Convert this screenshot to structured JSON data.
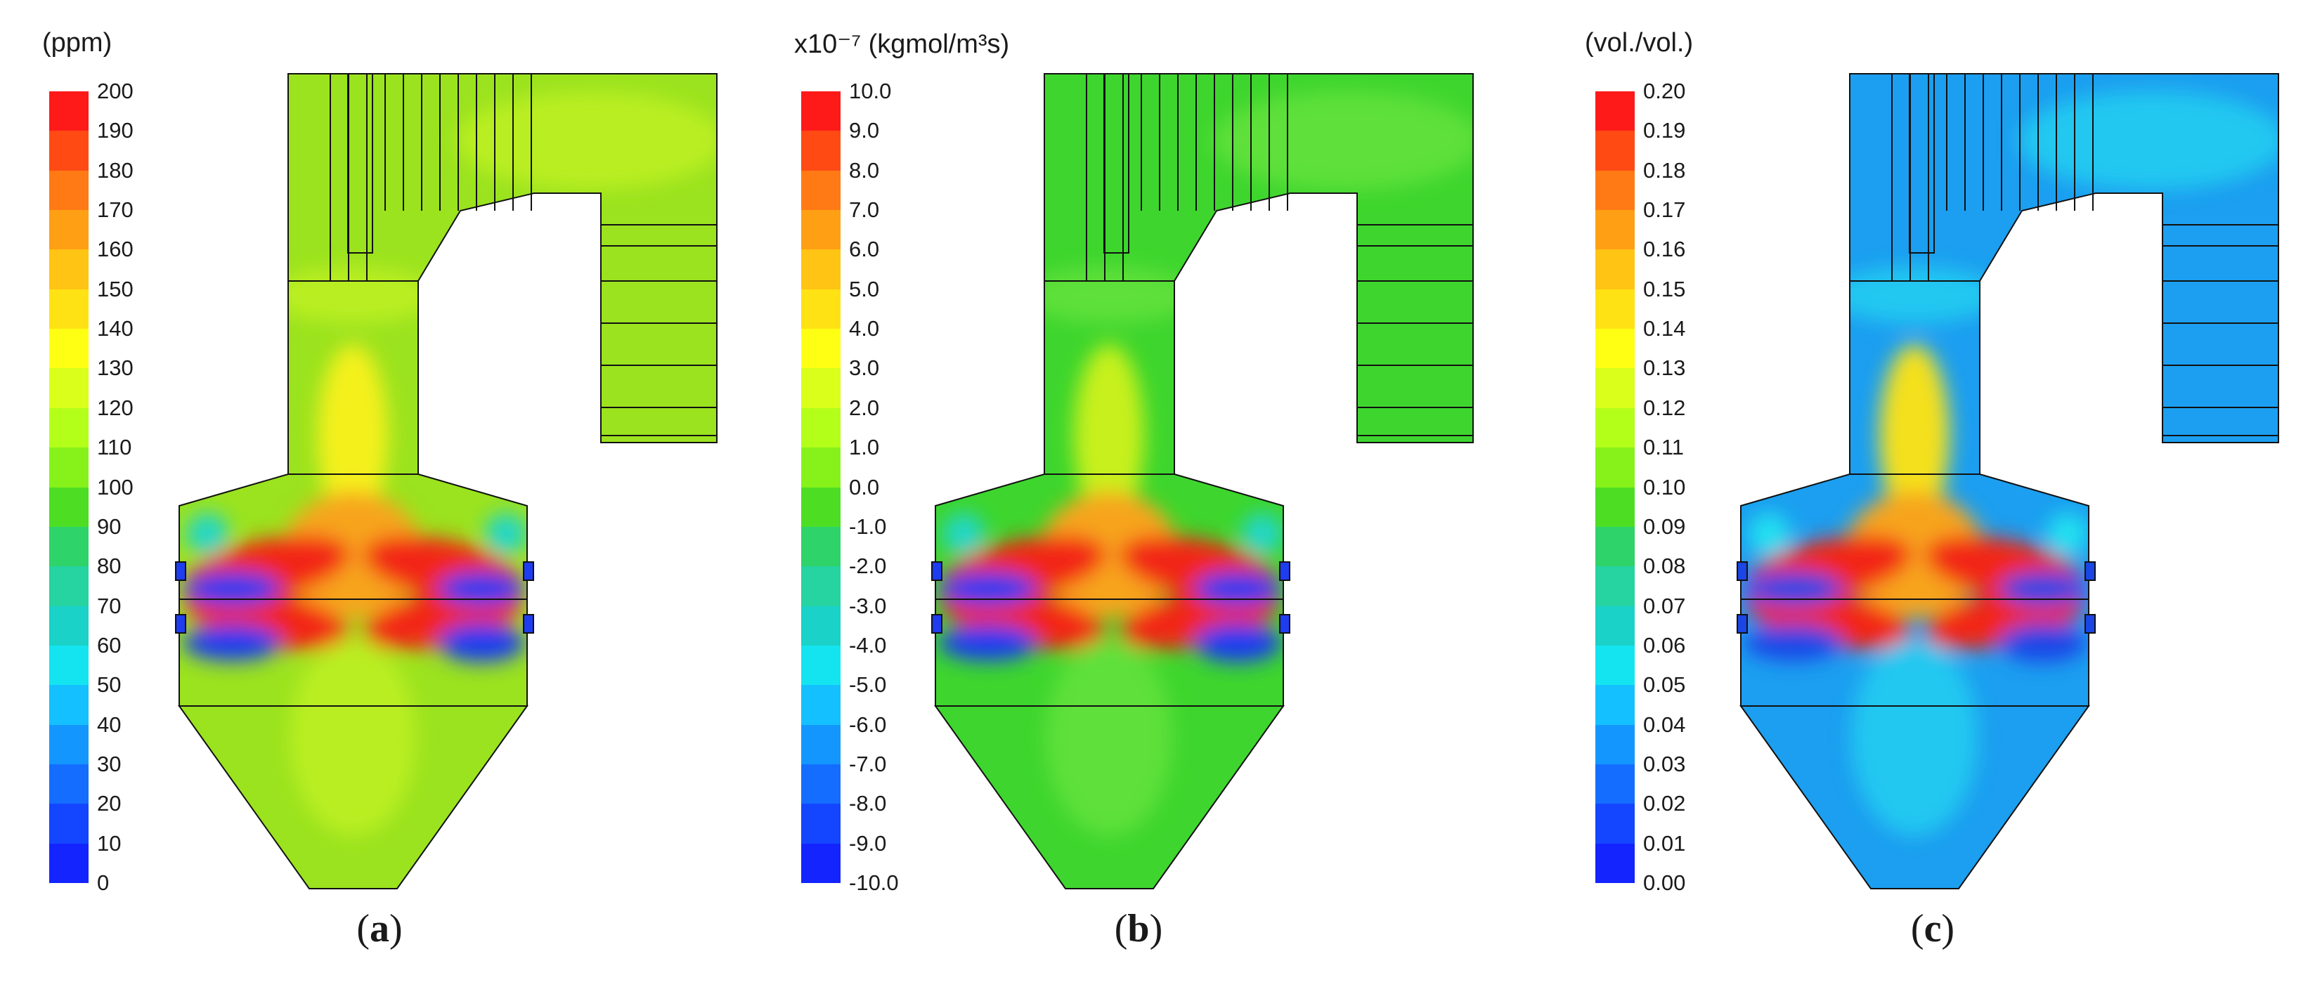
{
  "panels": [
    {
      "id": "a",
      "caption_open": "(",
      "caption_letter": "a",
      "caption_close": ")",
      "unit_label": "(ppm)",
      "tick_labels": [
        "200",
        "190",
        "180",
        "170",
        "160",
        "150",
        "140",
        "130",
        "120",
        "110",
        "100",
        "90",
        "80",
        "70",
        "60",
        "50",
        "40",
        "30",
        "20",
        "10",
        "0"
      ],
      "colors": [
        "#ff1a1a",
        "#ff4a14",
        "#ff7a14",
        "#ffa014",
        "#ffc414",
        "#ffe214",
        "#ffff14",
        "#d9ff1a",
        "#b3ff1a",
        "#86f21a",
        "#4dde24",
        "#2ed36a",
        "#25d4a0",
        "#1ad2c8",
        "#14e4f0",
        "#14c0ff",
        "#1496ff",
        "#146dff",
        "#1446ff",
        "#1424ff"
      ],
      "field_colors": {
        "background": "#9be31f",
        "hot": "#f22818",
        "cold": "#1e3cf0",
        "warm": "#f7a41c",
        "cyan": "#22d6c8",
        "mid": "#b9ee22",
        "yellow": "#f4f01c"
      }
    },
    {
      "id": "b",
      "caption_open": "(",
      "caption_letter": "b",
      "caption_close": ")",
      "unit_label": "x10⁻⁷ (kgmol/m³s)",
      "tick_labels": [
        "10.0",
        "9.0",
        "8.0",
        "7.0",
        "6.0",
        "5.0",
        "4.0",
        "3.0",
        "2.0",
        "1.0",
        "0.0",
        "-1.0",
        "-2.0",
        "-3.0",
        "-4.0",
        "-5.0",
        "-6.0",
        "-7.0",
        "-8.0",
        "-9.0",
        "-10.0"
      ],
      "colors": [
        "#ff1a1a",
        "#ff4a14",
        "#ff7a14",
        "#ffa014",
        "#ffc414",
        "#ffe214",
        "#ffff14",
        "#d9ff1a",
        "#b3ff1a",
        "#86f21a",
        "#4dde24",
        "#2ed36a",
        "#25d4a0",
        "#1ad2c8",
        "#14e4f0",
        "#14c0ff",
        "#1496ff",
        "#146dff",
        "#1446ff",
        "#1424ff"
      ],
      "field_colors": {
        "background": "#3ed62e",
        "hot": "#f22818",
        "cold": "#1e3cf0",
        "warm": "#f7a41c",
        "cyan": "#22d6c8",
        "mid": "#5fe03a",
        "yellow": "#c8f01c"
      }
    },
    {
      "id": "c",
      "caption_open": "(",
      "caption_letter": "c",
      "caption_close": ")",
      "unit_label": "(vol./vol.)",
      "tick_labels": [
        "0.20",
        "0.19",
        "0.18",
        "0.17",
        "0.16",
        "0.15",
        "0.14",
        "0.13",
        "0.12",
        "0.11",
        "0.10",
        "0.09",
        "0.08",
        "0.07",
        "0.06",
        "0.05",
        "0.04",
        "0.03",
        "0.02",
        "0.01",
        "0.00"
      ],
      "colors": [
        "#ff1a1a",
        "#ff4a14",
        "#ff7a14",
        "#ffa014",
        "#ffc414",
        "#ffe214",
        "#ffff14",
        "#d9ff1a",
        "#b3ff1a",
        "#86f21a",
        "#4dde24",
        "#2ed36a",
        "#25d4a0",
        "#1ad2c8",
        "#14e4f0",
        "#14c0ff",
        "#1496ff",
        "#146dff",
        "#1446ff",
        "#1424ff"
      ],
      "field_colors": {
        "background": "#1c9ff0",
        "hot": "#f22818",
        "cold": "#1a46e6",
        "warm": "#f7a41c",
        "cyan": "#22e0f0",
        "mid": "#22c8f0",
        "yellow": "#f4e01c"
      }
    }
  ]
}
